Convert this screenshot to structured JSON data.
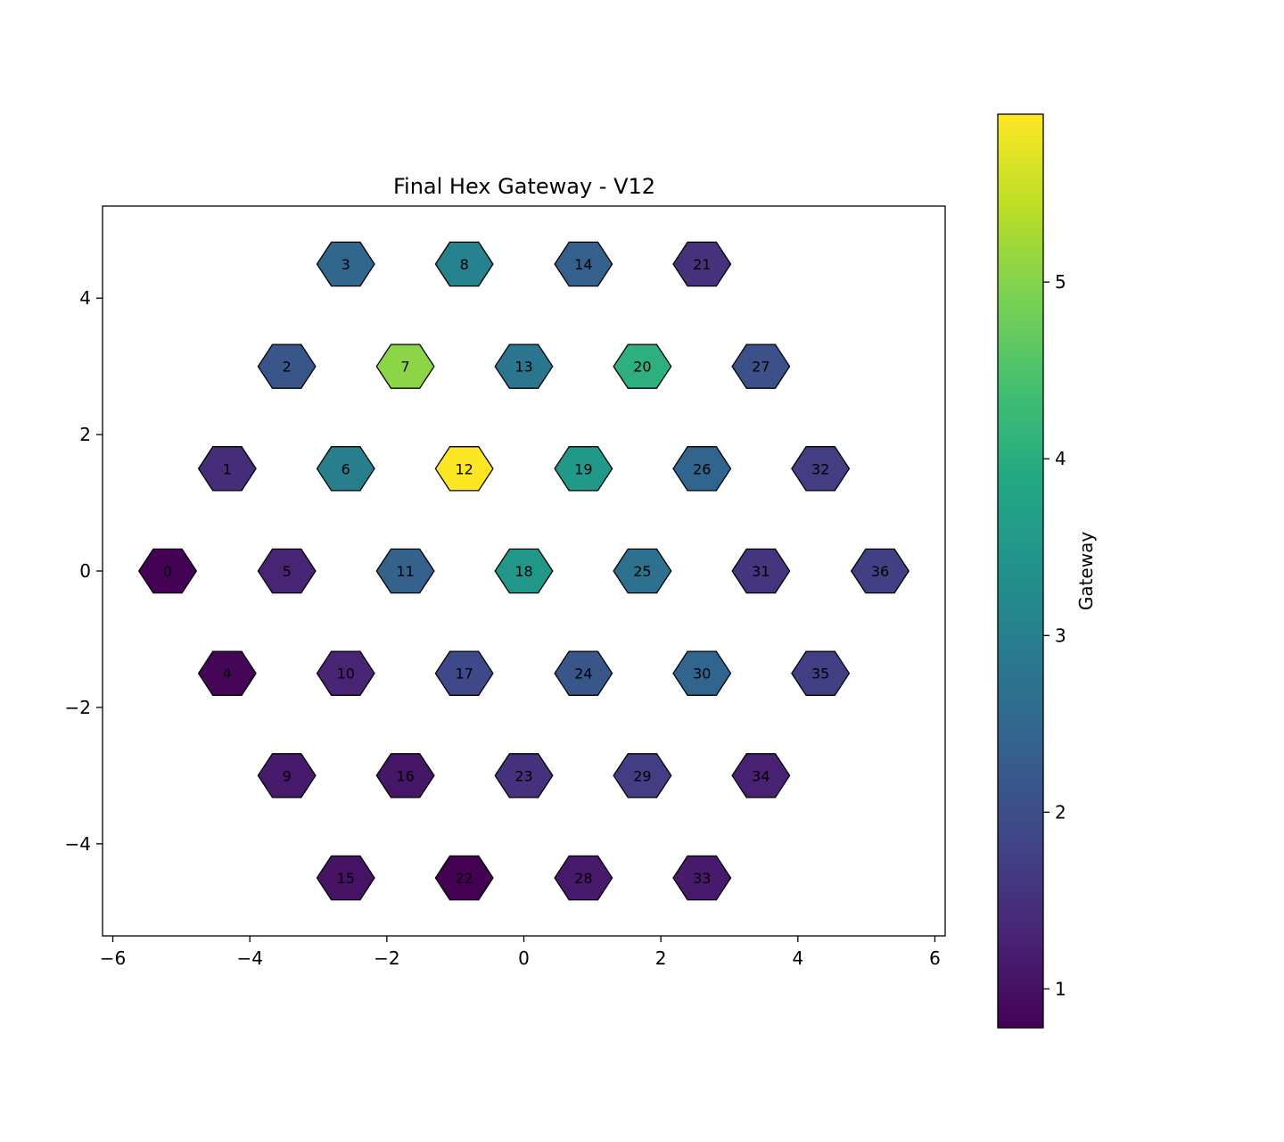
{
  "chart_data": {
    "type": "heatmap",
    "title": "Final Hex Gateway - V12",
    "xlim": [
      -6.15,
      6.15
    ],
    "ylim": [
      -5.35,
      5.35
    ],
    "xticks": [
      -6,
      -4,
      -2,
      0,
      2,
      4,
      6
    ],
    "yticks": [
      -4,
      -2,
      0,
      2,
      4
    ],
    "colorbar": {
      "label": "Gateway",
      "range": [
        0.78,
        5.95
      ],
      "ticks": [
        1,
        2,
        3,
        4,
        5
      ],
      "colormap": "viridis"
    },
    "cells": [
      {
        "id": "0",
        "x": -5.2,
        "y": 0.0,
        "value": 0.8
      },
      {
        "id": "1",
        "x": -4.33,
        "y": 1.5,
        "value": 1.45
      },
      {
        "id": "2",
        "x": -3.46,
        "y": 3.0,
        "value": 2.15
      },
      {
        "id": "3",
        "x": -2.6,
        "y": 4.5,
        "value": 2.5
      },
      {
        "id": "4",
        "x": -4.33,
        "y": -1.5,
        "value": 0.85
      },
      {
        "id": "5",
        "x": -3.46,
        "y": 0.0,
        "value": 1.3
      },
      {
        "id": "6",
        "x": -2.6,
        "y": 1.5,
        "value": 3.0
      },
      {
        "id": "7",
        "x": -1.73,
        "y": 3.0,
        "value": 5.05
      },
      {
        "id": "8",
        "x": -0.87,
        "y": 4.5,
        "value": 3.05
      },
      {
        "id": "9",
        "x": -3.46,
        "y": -3.0,
        "value": 1.15
      },
      {
        "id": "10",
        "x": -2.6,
        "y": -1.5,
        "value": 1.3
      },
      {
        "id": "11",
        "x": -1.73,
        "y": 0.0,
        "value": 2.4
      },
      {
        "id": "12",
        "x": -0.87,
        "y": 1.5,
        "value": 5.95
      },
      {
        "id": "13",
        "x": 0.0,
        "y": 3.0,
        "value": 2.8
      },
      {
        "id": "14",
        "x": 0.87,
        "y": 4.5,
        "value": 2.35
      },
      {
        "id": "15",
        "x": -2.6,
        "y": -4.5,
        "value": 1.05
      },
      {
        "id": "16",
        "x": -1.73,
        "y": -3.0,
        "value": 1.1
      },
      {
        "id": "17",
        "x": -0.87,
        "y": -1.5,
        "value": 1.9
      },
      {
        "id": "18",
        "x": 0.0,
        "y": 0.0,
        "value": 3.5
      },
      {
        "id": "19",
        "x": 0.87,
        "y": 1.5,
        "value": 3.55
      },
      {
        "id": "20",
        "x": 1.73,
        "y": 3.0,
        "value": 4.05
      },
      {
        "id": "21",
        "x": 2.6,
        "y": 4.5,
        "value": 1.5
      },
      {
        "id": "22",
        "x": -0.87,
        "y": -4.5,
        "value": 0.78
      },
      {
        "id": "23",
        "x": 0.0,
        "y": -3.0,
        "value": 1.5
      },
      {
        "id": "24",
        "x": 0.87,
        "y": -1.5,
        "value": 2.15
      },
      {
        "id": "25",
        "x": 1.73,
        "y": 0.0,
        "value": 2.7
      },
      {
        "id": "26",
        "x": 2.6,
        "y": 1.5,
        "value": 2.45
      },
      {
        "id": "27",
        "x": 3.46,
        "y": 3.0,
        "value": 2.05
      },
      {
        "id": "28",
        "x": 0.87,
        "y": -4.5,
        "value": 1.15
      },
      {
        "id": "29",
        "x": 1.73,
        "y": -3.0,
        "value": 1.7
      },
      {
        "id": "30",
        "x": 2.6,
        "y": -1.5,
        "value": 2.45
      },
      {
        "id": "31",
        "x": 3.46,
        "y": 0.0,
        "value": 1.55
      },
      {
        "id": "32",
        "x": 4.33,
        "y": 1.5,
        "value": 1.7
      },
      {
        "id": "33",
        "x": 2.6,
        "y": -4.5,
        "value": 1.15
      },
      {
        "id": "34",
        "x": 3.46,
        "y": -3.0,
        "value": 1.25
      },
      {
        "id": "35",
        "x": 4.33,
        "y": -1.5,
        "value": 1.75
      },
      {
        "id": "36",
        "x": 5.2,
        "y": 0.0,
        "value": 1.75
      }
    ]
  }
}
